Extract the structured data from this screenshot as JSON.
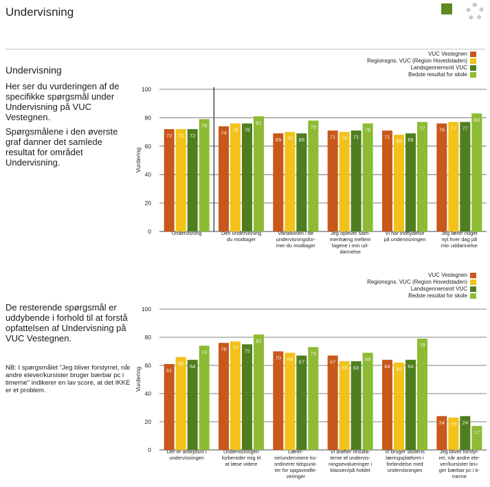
{
  "header": {
    "title": "Undervisning"
  },
  "intro": {
    "heading": "Undervisning",
    "paragraph1": "Her ser du vurderingen af de specifikke spørgsmål under Undervisning på VUC Vestegnen.",
    "paragraph2": "Spørgsmålene i den øverste graf danner det samlede resultat for området Undervisning.",
    "paragraph3": "De resterende spørgsmål er uddybende i forhold til at forstå opfattelsen af Undervisning på VUC Vestegnen.",
    "note": "NB: I spørgsmålet \"Jeg bliver forstyrret, når andre elever/kursister bruger bærbar pc i timerne\" indikerer en lav score, at det IKKE er et problem."
  },
  "colors": [
    "#c8581c",
    "#f2c21a",
    "#4f7e1f",
    "#8dbb33"
  ],
  "chart_data": [
    {
      "type": "bar",
      "ylabel": "Vurdering",
      "ylim": [
        0,
        100
      ],
      "yticks": [
        "0",
        "20",
        "40",
        "60",
        "80",
        "100"
      ],
      "grid": true,
      "legend_position": "top-right",
      "categories": [
        [
          "Undervisning"
        ],
        [
          "Den undervisning",
          "du modtager"
        ],
        [
          "Variationen i de",
          "undervisningsfor-",
          "mer du modtager"
        ],
        [
          "Jeg oplever sam-",
          "menhæng mellem",
          "fagene i min ud-",
          "dannelse"
        ],
        [
          "Vi har indflydelse",
          "på undervisningen"
        ],
        [
          "Jeg lærer noget",
          "nyt hver dag på",
          "min uddannelse"
        ]
      ],
      "series": [
        {
          "name": "VUC Vestegnen",
          "values": [
            72,
            74,
            69,
            71,
            71,
            76
          ]
        },
        {
          "name": "Regionsgns. VUC (Region Hovedstaden)",
          "values": [
            72,
            76,
            70,
            70,
            68,
            77
          ]
        },
        {
          "name": "Landsgennemsnit VUC",
          "values": [
            72,
            76,
            69,
            71,
            69,
            77
          ]
        },
        {
          "name": "Bedste resultat for skole",
          "values": [
            79,
            81,
            78,
            76,
            77,
            83
          ]
        }
      ]
    },
    {
      "type": "bar",
      "ylabel": "Vurdering",
      "ylim": [
        0,
        100
      ],
      "yticks": [
        "0",
        "20",
        "40",
        "60",
        "80",
        "100"
      ],
      "grid": true,
      "legend_position": "top-right",
      "categories": [
        [
          "Der er arbejdsro i",
          "undervisningen"
        ],
        [
          "Undervisningen",
          "forbereder mig til",
          "at læse videre"
        ],
        [
          "Lærer-",
          "ne/undervisere ko-",
          "ordinerer tidspunk-",
          "ter for opgaveafle-",
          "veringer"
        ],
        [
          "Vi drøfter resulta-",
          "terne af undervis-",
          "ningsevalueringer i",
          "klassen/på holdet"
        ],
        [
          "Vi bruger skolens",
          "læringsplatform i",
          "forbindelse med",
          "undervisningen"
        ],
        [
          "Jeg bliver forstyr-",
          "ret, når andre ele-",
          "ver/kursister bru-",
          "ger bærbar pc i ti-",
          "merne"
        ]
      ],
      "series": [
        {
          "name": "VUC Vestegnen",
          "values": [
            61,
            76,
            70,
            67,
            64,
            24
          ]
        },
        {
          "name": "Regionsgns. VUC (Region Hovedstaden)",
          "values": [
            66,
            77,
            69,
            63,
            62,
            23
          ]
        },
        {
          "name": "Landsgennemsnit VUC",
          "values": [
            64,
            75,
            67,
            63,
            64,
            24
          ]
        },
        {
          "name": "Bedste resultat for skole",
          "values": [
            74,
            82,
            73,
            69,
            79,
            17
          ]
        }
      ]
    }
  ]
}
